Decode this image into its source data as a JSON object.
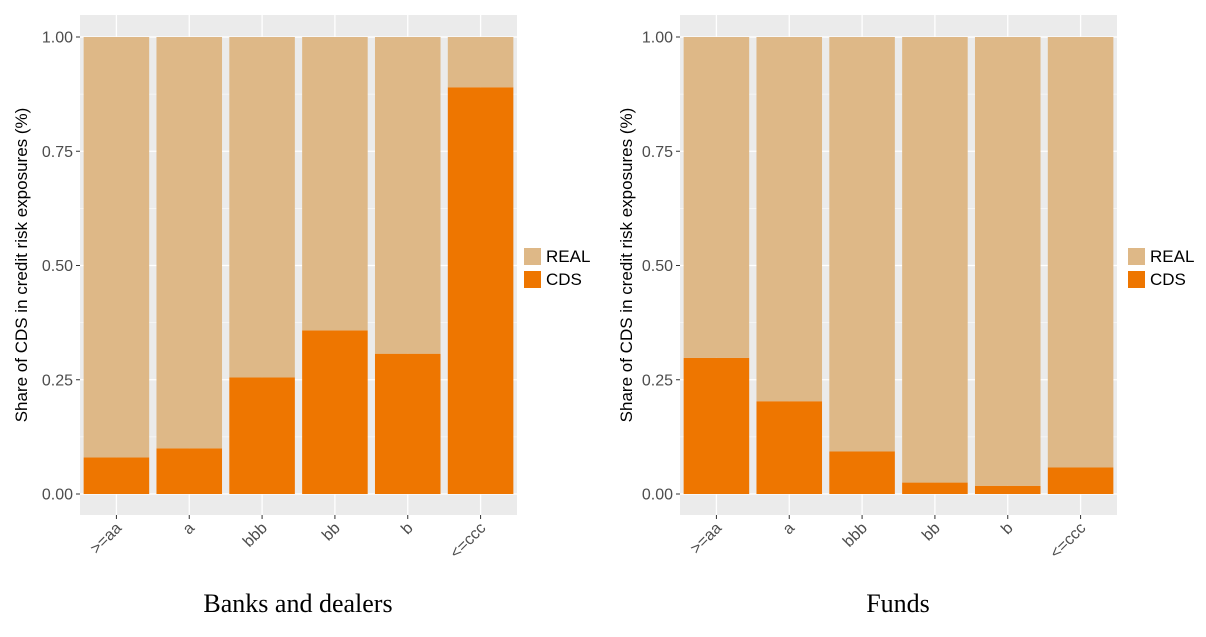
{
  "chart_data": [
    {
      "type": "bar",
      "stacked": true,
      "caption": "Banks and dealers",
      "ylabel": "Share of CDS in credit risk exposures (%)",
      "xlabel": "",
      "categories": [
        ">=aa",
        "a",
        "bbb",
        "bb",
        "b",
        "<=ccc"
      ],
      "ylim": [
        0,
        1
      ],
      "yticks": [
        "0.00",
        "0.25",
        "0.50",
        "0.75",
        "1.00"
      ],
      "series": [
        {
          "name": "CDS",
          "color": "#EE7600",
          "values": [
            0.08,
            0.1,
            0.255,
            0.358,
            0.307,
            0.89
          ]
        },
        {
          "name": "REAL",
          "color": "#DEB887",
          "values": [
            0.92,
            0.9,
            0.745,
            0.642,
            0.693,
            0.11
          ]
        }
      ],
      "legend_order": [
        "REAL",
        "CDS"
      ],
      "legend_position": "right",
      "grid": true
    },
    {
      "type": "bar",
      "stacked": true,
      "caption": "Funds",
      "ylabel": "Share of CDS in credit risk exposures (%)",
      "xlabel": "",
      "categories": [
        ">=aa",
        "a",
        "bbb",
        "bb",
        "b",
        "<=ccc"
      ],
      "ylim": [
        0,
        1
      ],
      "yticks": [
        "0.00",
        "0.25",
        "0.50",
        "0.75",
        "1.00"
      ],
      "series": [
        {
          "name": "CDS",
          "color": "#EE7600",
          "values": [
            0.298,
            0.203,
            0.093,
            0.025,
            0.018,
            0.058
          ]
        },
        {
          "name": "REAL",
          "color": "#DEB887",
          "values": [
            0.702,
            0.797,
            0.907,
            0.975,
            0.982,
            0.942
          ]
        }
      ],
      "legend_order": [
        "REAL",
        "CDS"
      ],
      "legend_position": "right",
      "grid": true
    }
  ]
}
